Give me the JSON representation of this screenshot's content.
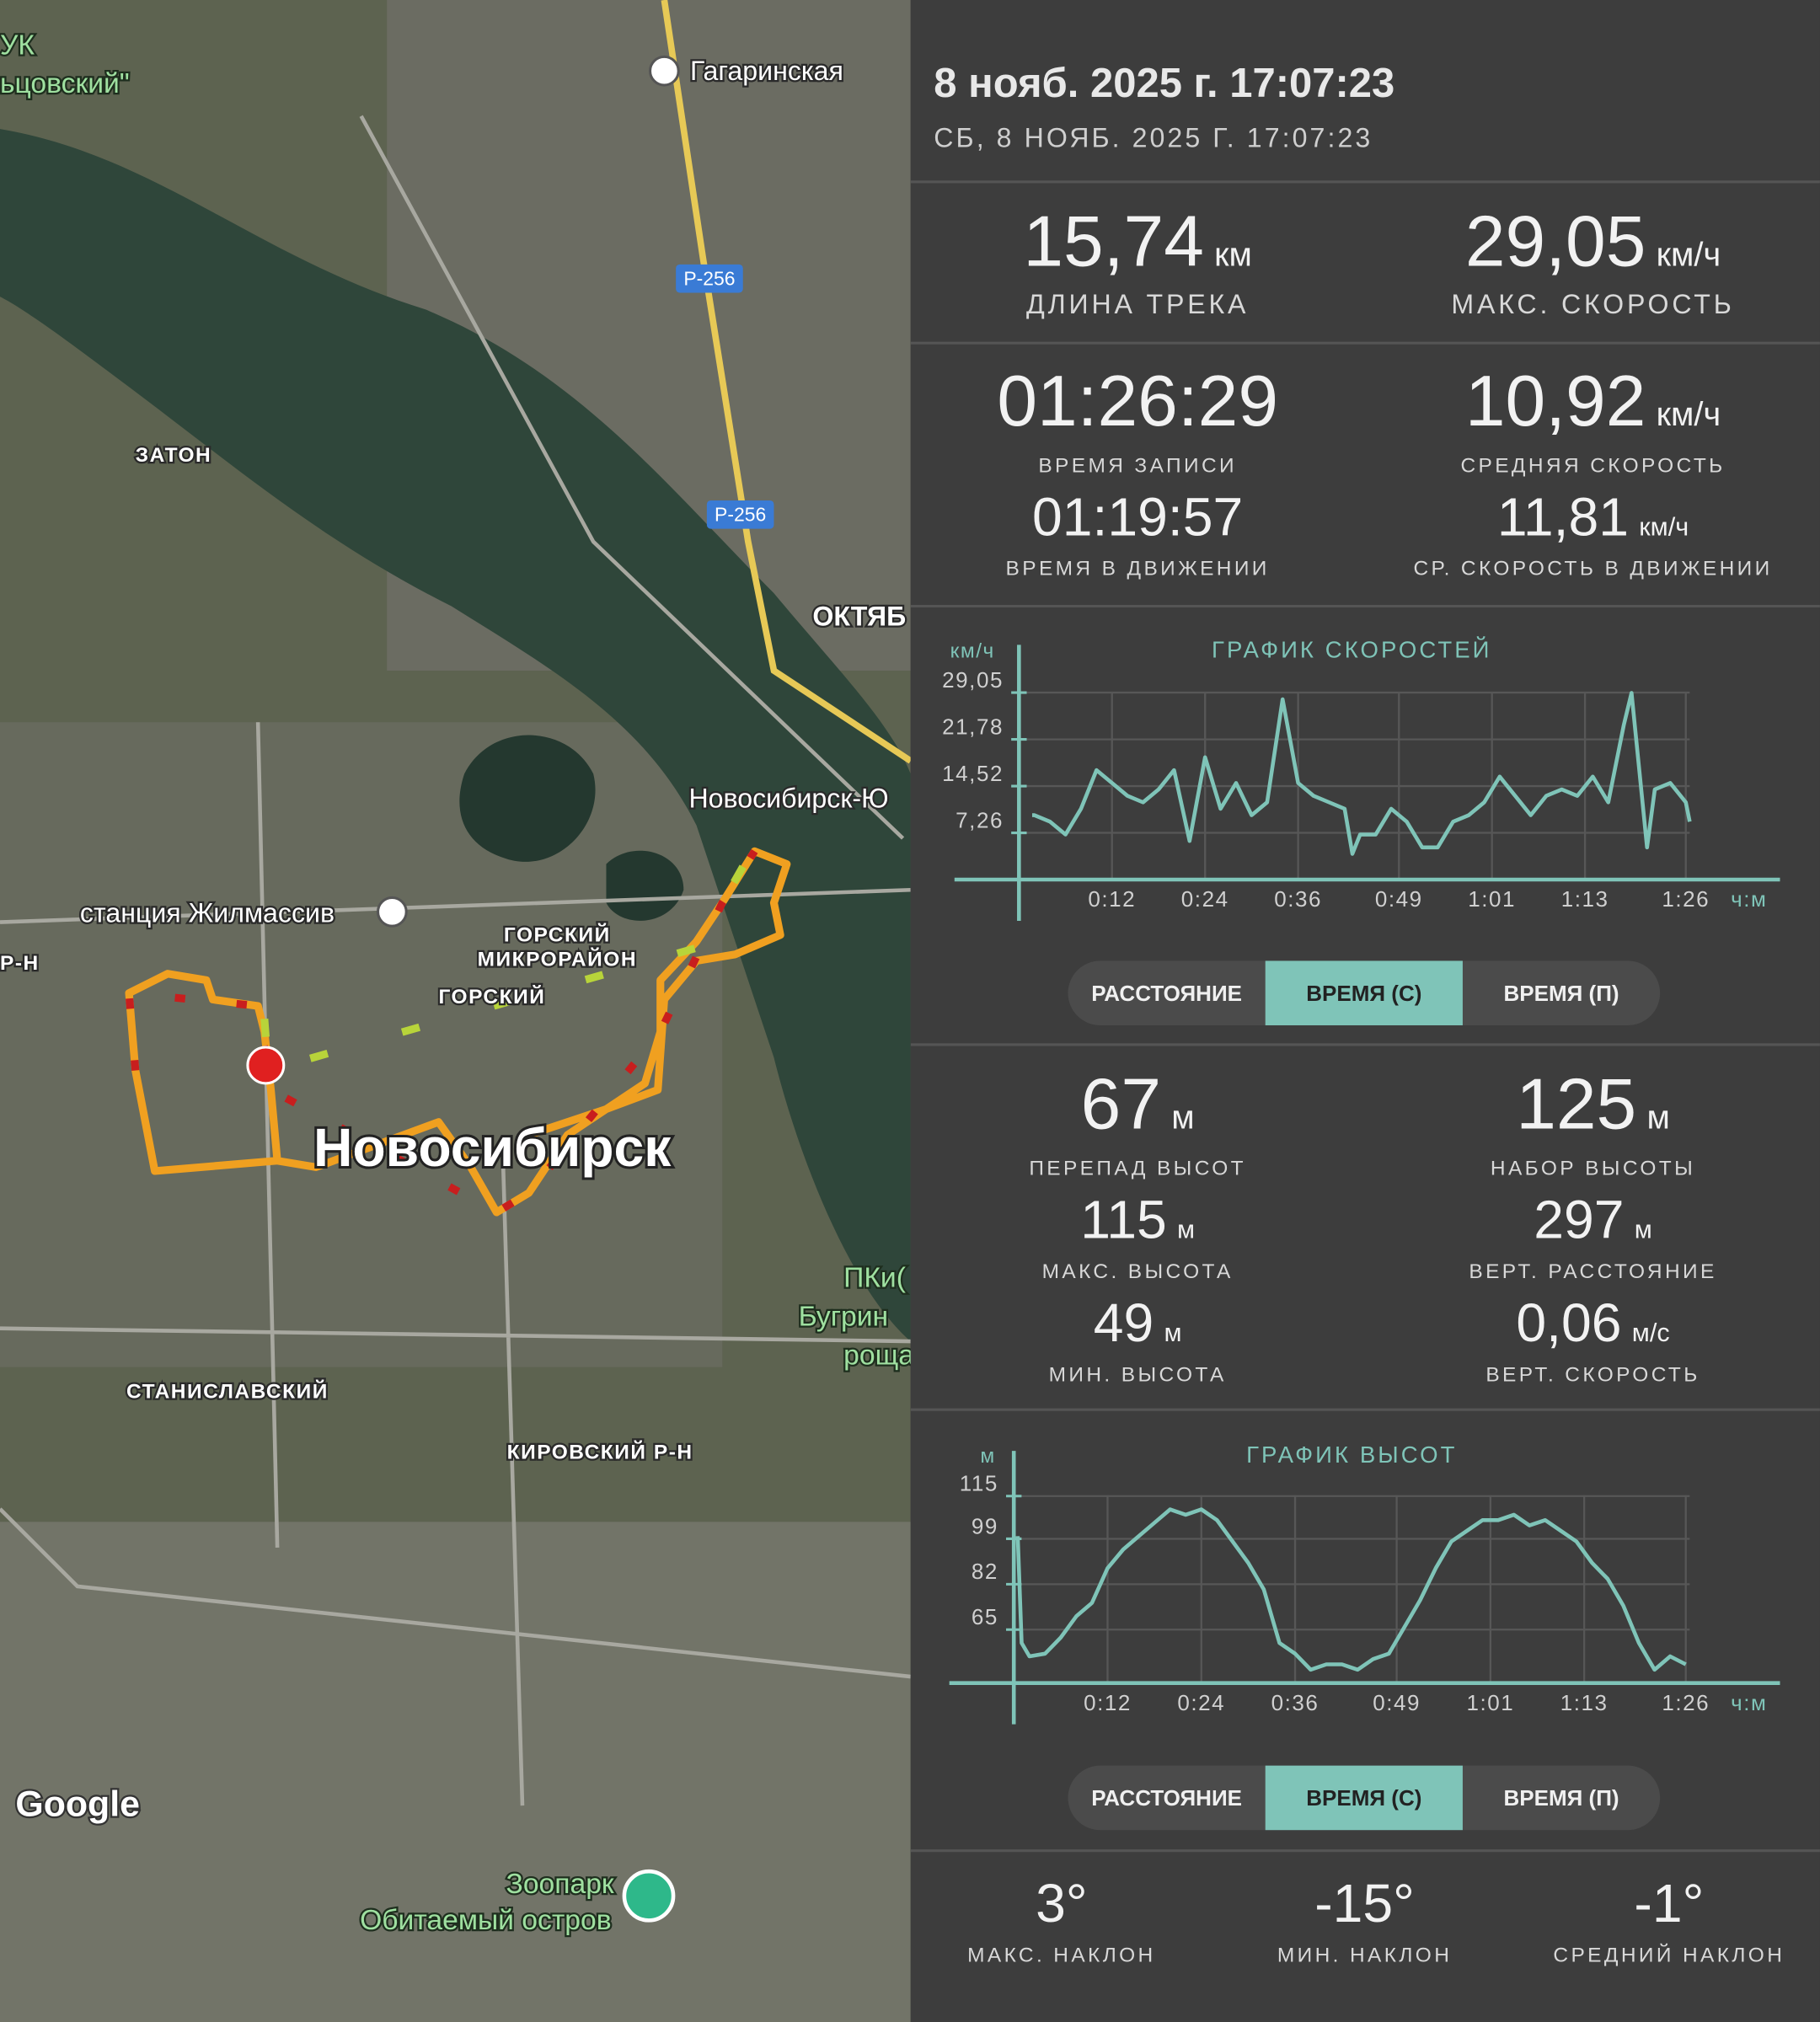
{
  "map": {
    "labels": [
      "УК",
      "ьцовский\"",
      "Гагаринская",
      "Р-256",
      "Р-256",
      "ЗАТОН",
      "ОКТЯБ",
      "Новосибирск-Ю",
      "станция Жилмассив",
      "ГОРСКИЙ",
      "МИКРОРАЙОН",
      "ГОРСКИЙ",
      "Р-Н",
      "Новосибирск",
      "ПКи(",
      "Бугрин",
      "роща",
      "СТАНИСЛАВСКИЙ",
      "КИРОВСКИЙ Р-Н",
      "Google",
      "Зоопарк",
      "Обитаемый остров"
    ]
  },
  "header": {
    "title": "8 нояб. 2025 г. 17:07:23",
    "subtitle": "СБ, 8 НОЯБ. 2025 Г. 17:07:23"
  },
  "track": [
    {
      "value": "15,74",
      "unit": "км",
      "label": "ДЛИНА ТРЕКА"
    },
    {
      "value": "29,05",
      "unit": "км/ч",
      "label": "МАКС. СКОРОСТЬ"
    }
  ],
  "times": [
    {
      "value": "01:26:29",
      "label": "ВРЕМЯ ЗАПИСИ"
    },
    {
      "value": "10,92",
      "unit": "км/ч",
      "label": "СРЕДНЯЯ СКОРОСТЬ"
    },
    {
      "value": "01:19:57",
      "label": "ВРЕМЯ В ДВИЖЕНИИ"
    },
    {
      "value": "11,81",
      "unit": "км/ч",
      "label": "СР. СКОРОСТЬ В ДВИЖЕНИИ"
    }
  ],
  "elevation": [
    {
      "value": "67",
      "unit": "м",
      "label": "ПЕРЕПАД ВЫСОТ"
    },
    {
      "value": "125",
      "unit": "м",
      "label": "НАБОР ВЫСОТЫ"
    },
    {
      "value": "115",
      "unit": "м",
      "label": "МАКС. ВЫСОТА"
    },
    {
      "value": "297",
      "unit": "м",
      "label": "ВЕРТ. РАССТОЯНИЕ"
    },
    {
      "value": "49",
      "unit": "м",
      "label": "МИН. ВЫСОТА"
    },
    {
      "value": "0,06",
      "unit": "м/с",
      "label": "ВЕРТ. СКОРОСТЬ"
    }
  ],
  "slopes": [
    {
      "value": "3°",
      "label": "МАКС. НАКЛОН"
    },
    {
      "value": "-15°",
      "label": "МИН. НАКЛОН"
    },
    {
      "value": "-1°",
      "label": "СРЕДНИЙ НАКЛОН"
    }
  ],
  "tabs": [
    [
      "РАССТОЯНИЕ",
      "ВРЕМЯ (С)",
      "ВРЕМЯ (П)"
    ],
    [
      "РАССТОЯНИЕ",
      "ВРЕМЯ (С)",
      "ВРЕМЯ (П)"
    ]
  ],
  "chart_data": [
    {
      "type": "line",
      "title": "ГРАФИК СКОРОСТЕЙ",
      "y_label": "км/ч",
      "x_label": "ч:м",
      "color": "#7fc4b8",
      "grid": true,
      "x": [
        1.7,
        2,
        4,
        6,
        8,
        10,
        12,
        14,
        16,
        18,
        20,
        22,
        24,
        26,
        28,
        30,
        32,
        34,
        36,
        38,
        40,
        42,
        43,
        44,
        46,
        48,
        50,
        52,
        54,
        56,
        58,
        60,
        62,
        64,
        66,
        68,
        70,
        72,
        74,
        76,
        78,
        79,
        80,
        81,
        82,
        84,
        86,
        86.5
      ],
      "values": [
        10,
        10,
        9,
        7,
        11,
        17,
        15,
        13,
        12,
        14,
        17,
        6,
        19,
        11,
        15,
        10,
        12,
        28,
        15,
        13,
        12,
        11,
        4,
        7,
        7,
        11,
        9,
        5,
        5,
        9,
        10,
        12,
        16,
        13,
        10,
        13,
        14,
        13,
        16,
        12,
        24,
        29,
        17,
        5,
        14,
        15,
        12,
        9
      ],
      "xlim": [
        0,
        86.5
      ],
      "ylim": [
        0,
        29.05
      ],
      "xticks": [
        {
          "value": 12,
          "label": "0:12"
        },
        {
          "value": 24,
          "label": "0:24"
        },
        {
          "value": 36,
          "label": "0:36"
        },
        {
          "value": 49,
          "label": "0:49"
        },
        {
          "value": 61,
          "label": "1:01"
        },
        {
          "value": 73,
          "label": "1:13"
        },
        {
          "value": 86,
          "label": "1:26"
        }
      ],
      "yticks": [
        {
          "value": 7.26,
          "label": "7,26"
        },
        {
          "value": 14.52,
          "label": "14,52"
        },
        {
          "value": 21.78,
          "label": "21,78"
        },
        {
          "value": 29.05,
          "label": "29,05"
        }
      ]
    },
    {
      "type": "line",
      "title": "ГРАФИК ВЫСОТ",
      "y_label": "м",
      "x_label": "ч:м",
      "color": "#7fc4b8",
      "grid": true,
      "x": [
        0.5,
        1,
        2,
        4,
        6,
        8,
        10,
        12,
        14,
        16,
        18,
        20,
        22,
        24,
        26,
        28,
        30,
        32,
        34,
        36,
        38,
        40,
        42,
        43,
        44,
        46,
        48,
        50,
        52,
        54,
        56,
        58,
        60,
        62,
        64,
        66,
        68,
        70,
        72,
        74,
        76,
        78,
        80,
        82,
        84,
        86
      ],
      "values": [
        100,
        60,
        55,
        56,
        62,
        70,
        75,
        88,
        95,
        100,
        105,
        110,
        108,
        110,
        106,
        98,
        90,
        80,
        60,
        56,
        50,
        52,
        52,
        51,
        50,
        54,
        56,
        66,
        76,
        88,
        98,
        102,
        106,
        106,
        108,
        104,
        106,
        102,
        98,
        90,
        84,
        74,
        60,
        50,
        55,
        52
      ],
      "xlim": [
        0,
        86.5
      ],
      "ylim": [
        45,
        115
      ],
      "xticks": [
        {
          "value": 12,
          "label": "0:12"
        },
        {
          "value": 24,
          "label": "0:24"
        },
        {
          "value": 36,
          "label": "0:36"
        },
        {
          "value": 49,
          "label": "0:49"
        },
        {
          "value": 61,
          "label": "1:01"
        },
        {
          "value": 73,
          "label": "1:13"
        },
        {
          "value": 86,
          "label": "1:26"
        }
      ],
      "yticks": [
        65,
        82,
        99,
        115
      ]
    }
  ]
}
